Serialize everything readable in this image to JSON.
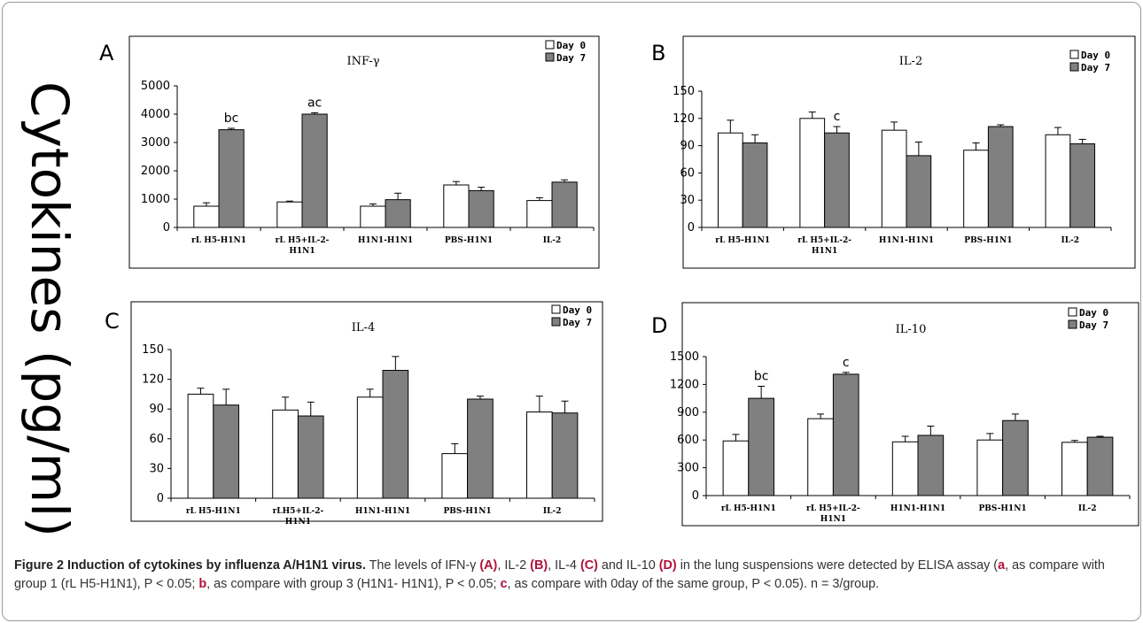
{
  "y_axis_label": "Cytokines (pg/ml)",
  "caption": {
    "title": "Figure 2 Induction of cytokines by influenza A/H1N1 virus.",
    "p1": " The levels of IFN-γ ",
    "a": "(A)",
    "p2": ", IL-2 ",
    "b": "(B)",
    "p3": ", IL-4 ",
    "c": "(C)",
    "p4": " and IL-10 ",
    "d": "(D)",
    "p5": " in the lung suspensions were detected by ELISA assay (",
    "la": "a",
    "p6": ", as compare with group 1 (rL H5-H1N1), P < 0.05; ",
    "lb": "b",
    "p7": ", as compare with group 3 (H1N1- H1N1), P < 0.05; ",
    "lc": "c",
    "p8": ", as compare with 0day of the same group, P < 0.05). n = 3/group."
  },
  "colors": {
    "day0": "#ffffff",
    "day7": "#808080",
    "stroke": "#000000",
    "caption_bold": "#b0123a"
  },
  "chart_data": [
    {
      "type": "bar",
      "panel": "A",
      "title": "INF-γ",
      "categories": [
        "rL H5-H1N1",
        "rL H5+IL-2-\nH1N1",
        "H1N1-H1N1",
        "PBS-H1N1",
        "IL-2"
      ],
      "series": [
        {
          "name": "Day 0",
          "values": [
            750,
            900,
            750,
            1500,
            950
          ],
          "errors": [
            120,
            30,
            80,
            120,
            100
          ]
        },
        {
          "name": "Day 7",
          "values": [
            3450,
            4000,
            980,
            1300,
            1600
          ],
          "errors": [
            50,
            50,
            230,
            120,
            80
          ]
        }
      ],
      "annotations": [
        "bc",
        "ac",
        "",
        "",
        ""
      ],
      "yticks": [
        0,
        1000,
        2000,
        3000,
        4000,
        5000
      ],
      "ylim": [
        0,
        5000
      ],
      "legend": "top-right"
    },
    {
      "type": "bar",
      "panel": "B",
      "title": "IL-2",
      "categories": [
        "rL H5-H1N1",
        "rL H5+IL-2-\nH1N1",
        "H1N1-H1N1",
        "PBS-H1N1",
        "IL-2"
      ],
      "series": [
        {
          "name": "Day 0",
          "values": [
            104,
            120,
            107,
            85,
            102
          ],
          "errors": [
            14,
            7,
            9,
            8,
            8
          ]
        },
        {
          "name": "Day 7",
          "values": [
            93,
            104,
            79,
            111,
            92
          ],
          "errors": [
            9,
            7,
            15,
            2,
            5
          ]
        }
      ],
      "annotations": [
        "",
        "c",
        "",
        "",
        ""
      ],
      "yticks": [
        0,
        30,
        60,
        90,
        120,
        150
      ],
      "ylim": [
        0,
        150
      ],
      "legend": "top-right"
    },
    {
      "type": "bar",
      "panel": "C",
      "title": "IL-4",
      "categories": [
        "rL H5-H1N1",
        "rLH5+IL-2-\nH1N1",
        "H1N1-H1N1",
        "PBS-H1N1",
        "IL-2"
      ],
      "series": [
        {
          "name": "Day 0",
          "values": [
            105,
            89,
            102,
            45,
            87
          ],
          "errors": [
            6,
            13,
            8,
            10,
            16
          ]
        },
        {
          "name": "Day 7",
          "values": [
            94,
            83,
            129,
            100,
            86
          ],
          "errors": [
            16,
            14,
            14,
            3,
            12
          ]
        }
      ],
      "annotations": [
        "",
        "",
        "",
        "",
        ""
      ],
      "yticks": [
        0,
        30,
        60,
        90,
        120,
        150
      ],
      "ylim": [
        0,
        150
      ],
      "legend": "top-right"
    },
    {
      "type": "bar",
      "panel": "D",
      "title": "IL-10",
      "categories": [
        "rL H5-H1N1",
        "rL H5+IL-2-\nH1N1",
        "H1N1-H1N1",
        "PBS-H1N1",
        "IL-2"
      ],
      "series": [
        {
          "name": "Day 0",
          "values": [
            590,
            830,
            580,
            600,
            575
          ],
          "errors": [
            70,
            50,
            60,
            70,
            20
          ]
        },
        {
          "name": "Day 7",
          "values": [
            1050,
            1310,
            650,
            810,
            630
          ],
          "errors": [
            130,
            20,
            100,
            70,
            10
          ]
        }
      ],
      "annotations": [
        "bc",
        "c",
        "",
        "",
        ""
      ],
      "yticks": [
        0,
        300,
        600,
        900,
        1200,
        1500
      ],
      "ylim": [
        0,
        1500
      ],
      "legend": "top-right"
    }
  ]
}
